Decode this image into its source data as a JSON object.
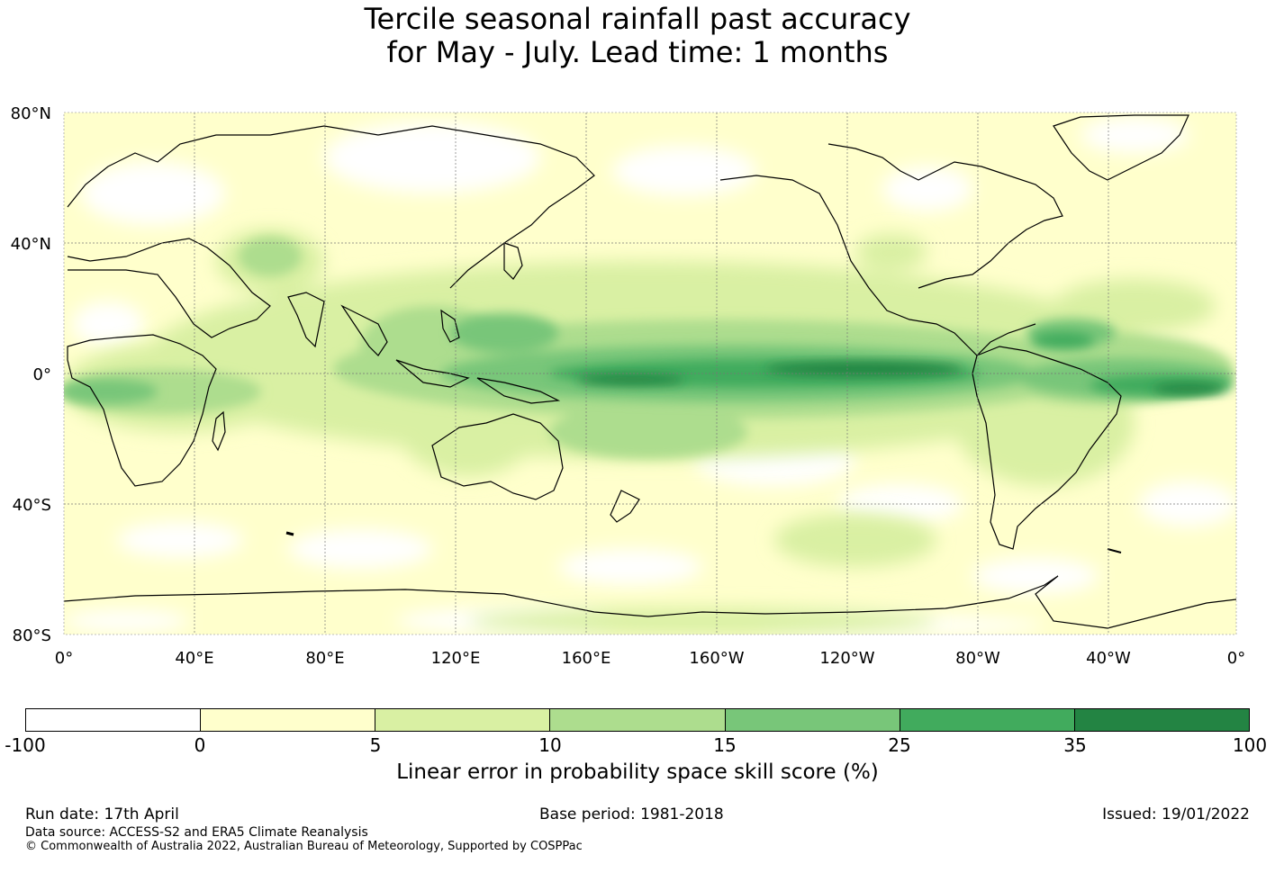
{
  "title": {
    "line1": "Tercile seasonal rainfall past accuracy",
    "line2": "for May - July. Lead time: 1 months"
  },
  "map": {
    "lat_labels": [
      "80°N",
      "40°N",
      "0°",
      "40°S",
      "80°S"
    ],
    "lon_labels": [
      "0°",
      "40°E",
      "80°E",
      "120°E",
      "160°E",
      "160°W",
      "120°W",
      "80°W",
      "40°W",
      "0°"
    ],
    "lat_extent": [
      -80,
      80
    ],
    "lon_extent": [
      0,
      360
    ],
    "high_skill_regions": [
      {
        "name": "Equatorial Pacific",
        "lon_range": [
          150,
          280
        ],
        "lat_range": [
          -10,
          15
        ],
        "level": "25-35+"
      },
      {
        "name": "Equatorial Atlantic",
        "lon_range": [
          310,
          360
        ],
        "lat_range": [
          -8,
          12
        ],
        "level": "25-35+"
      },
      {
        "name": "Maritime Continent",
        "lon_range": [
          100,
          150
        ],
        "lat_range": [
          -10,
          20
        ],
        "level": "15-25"
      }
    ]
  },
  "colorbar": {
    "colors": [
      "#ffffff",
      "#ffffcc",
      "#d9f0a3",
      "#addd8e",
      "#78c679",
      "#41ab5d",
      "#238443"
    ],
    "ticks": [
      "-100",
      "0",
      "5",
      "10",
      "15",
      "25",
      "35",
      "100"
    ],
    "label": "Linear error in probability space skill score (%)"
  },
  "footer": {
    "run_date": "Run date: 17th April",
    "base_period": "Base period: 1981-2018",
    "issued": "Issued: 19/01/2022",
    "data_source": "Data source: ACCESS-S2 and ERA5 Climate Reanalysis",
    "copyright": "© Commonwealth of Australia 2022, Australian Bureau of Meteorology, Supported by COSPPac"
  }
}
